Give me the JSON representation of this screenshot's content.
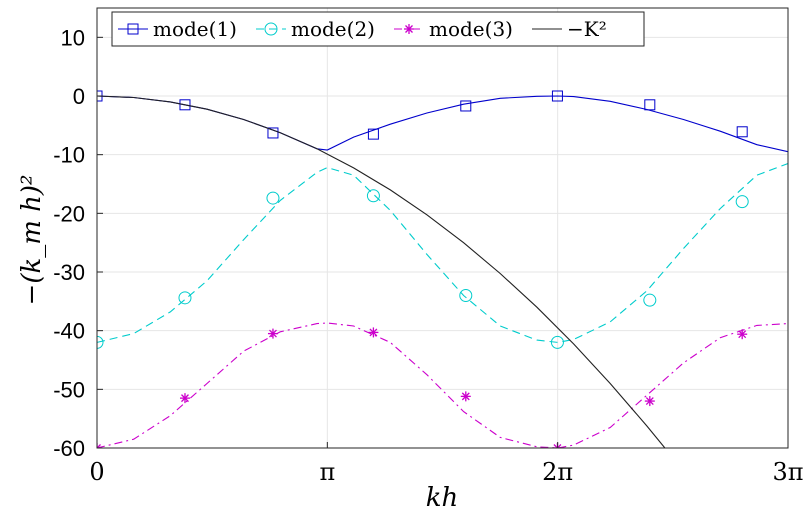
{
  "chart_data": {
    "type": "line",
    "title": "",
    "xlabel": "kh",
    "ylabel": "−(k_m h)²",
    "xlim": [
      0,
      9.42478
    ],
    "ylim": [
      -60,
      15
    ],
    "grid": true,
    "legend_position": "top-left",
    "x_ticks": [
      {
        "value": 0,
        "label": "0"
      },
      {
        "value": 3.14159,
        "label": "π"
      },
      {
        "value": 6.28319,
        "label": "2π"
      },
      {
        "value": 9.42478,
        "label": "3π"
      }
    ],
    "y_ticks": [
      {
        "value": 10,
        "label": "10"
      },
      {
        "value": 0,
        "label": "0"
      },
      {
        "value": -10,
        "label": "-10"
      },
      {
        "value": -20,
        "label": "-20"
      },
      {
        "value": -30,
        "label": "-30"
      },
      {
        "value": -40,
        "label": "-40"
      },
      {
        "value": -50,
        "label": "-50"
      },
      {
        "value": -60,
        "label": "-60"
      }
    ],
    "series": [
      {
        "name": "mode(1)",
        "color": "#0000cc",
        "dash": "solid",
        "marker": "square",
        "x": [
          0,
          0.5,
          1.0,
          1.5,
          2.0,
          2.5,
          3.0,
          3.14159,
          3.5,
          4.0,
          4.5,
          5.0,
          5.5,
          6.0,
          6.28319,
          6.5,
          7.0,
          7.5,
          8.0,
          8.5,
          9.0,
          9.42478
        ],
        "y": [
          0,
          -0.25,
          -1.0,
          -2.25,
          -4.0,
          -6.25,
          -9.0,
          -9.2,
          -7.0,
          -4.8,
          -2.9,
          -1.4,
          -0.4,
          -0.05,
          0,
          -0.1,
          -0.9,
          -2.3,
          -4.0,
          -6.0,
          -8.3,
          -9.5
        ],
        "marker_x": [
          0,
          1.2,
          2.4,
          3.77,
          5.03,
          6.28,
          7.54,
          8.8
        ],
        "marker_y": [
          0,
          -1.5,
          -6.3,
          -6.5,
          -1.7,
          0,
          -1.5,
          -6.1
        ]
      },
      {
        "name": "mode(2)",
        "color": "#00cccc",
        "dash": "dashed",
        "marker": "circle",
        "x": [
          0,
          0.5,
          1.0,
          1.5,
          2.0,
          2.5,
          3.0,
          3.14159,
          3.5,
          4.0,
          4.5,
          5.0,
          5.5,
          6.0,
          6.28319,
          6.5,
          7.0,
          7.5,
          8.0,
          8.5,
          9.0,
          9.42478
        ],
        "y": [
          -42,
          -40.5,
          -36.8,
          -31.5,
          -24.5,
          -17.8,
          -13.0,
          -12.2,
          -13.5,
          -19.5,
          -27.0,
          -34.0,
          -39.2,
          -41.6,
          -42,
          -41.5,
          -38.5,
          -33.2,
          -26.0,
          -19.2,
          -13.5,
          -11.5
        ],
        "marker_x": [
          0,
          1.2,
          2.4,
          3.77,
          5.03,
          6.28,
          7.54,
          8.8
        ],
        "marker_y": [
          -42,
          -34.4,
          -17.4,
          -17.0,
          -34.0,
          -42,
          -34.8,
          -18.0
        ]
      },
      {
        "name": "mode(3)",
        "color": "#cc00cc",
        "dash": "dashdot",
        "marker": "asterisk",
        "x": [
          0,
          0.5,
          1.0,
          1.5,
          2.0,
          2.5,
          3.0,
          3.14159,
          3.5,
          4.0,
          4.5,
          5.0,
          5.5,
          6.0,
          6.28319,
          6.5,
          7.0,
          7.5,
          8.0,
          8.5,
          9.0,
          9.42478
        ],
        "y": [
          -60,
          -58.5,
          -54.5,
          -49.0,
          -43.5,
          -40.2,
          -38.8,
          -38.7,
          -39.2,
          -42.0,
          -47.5,
          -53.8,
          -58.2,
          -59.8,
          -60,
          -59.5,
          -56.5,
          -51.0,
          -45.5,
          -41.2,
          -39.1,
          -38.8
        ],
        "marker_x": [
          0,
          1.2,
          2.4,
          3.77,
          5.03,
          6.28,
          7.54,
          8.8
        ],
        "marker_y": [
          -60,
          -51.5,
          -40.5,
          -40.3,
          -51.2,
          -60,
          -52.0,
          -40.6
        ]
      },
      {
        "name": "−K²",
        "color": "#222222",
        "dash": "solid",
        "marker": "none",
        "x": [
          0,
          0.5,
          1.0,
          1.5,
          2.0,
          2.5,
          3.0,
          3.5,
          4.0,
          4.5,
          5.0,
          5.5,
          6.0,
          6.5,
          7.0,
          7.5,
          7.746
        ],
        "y": [
          0,
          -0.25,
          -1.0,
          -2.25,
          -4.0,
          -6.25,
          -9.0,
          -12.25,
          -16.0,
          -20.25,
          -25.0,
          -30.25,
          -36.0,
          -42.25,
          -49.0,
          -56.25,
          -60.0
        ],
        "marker_x": [],
        "marker_y": []
      }
    ]
  }
}
